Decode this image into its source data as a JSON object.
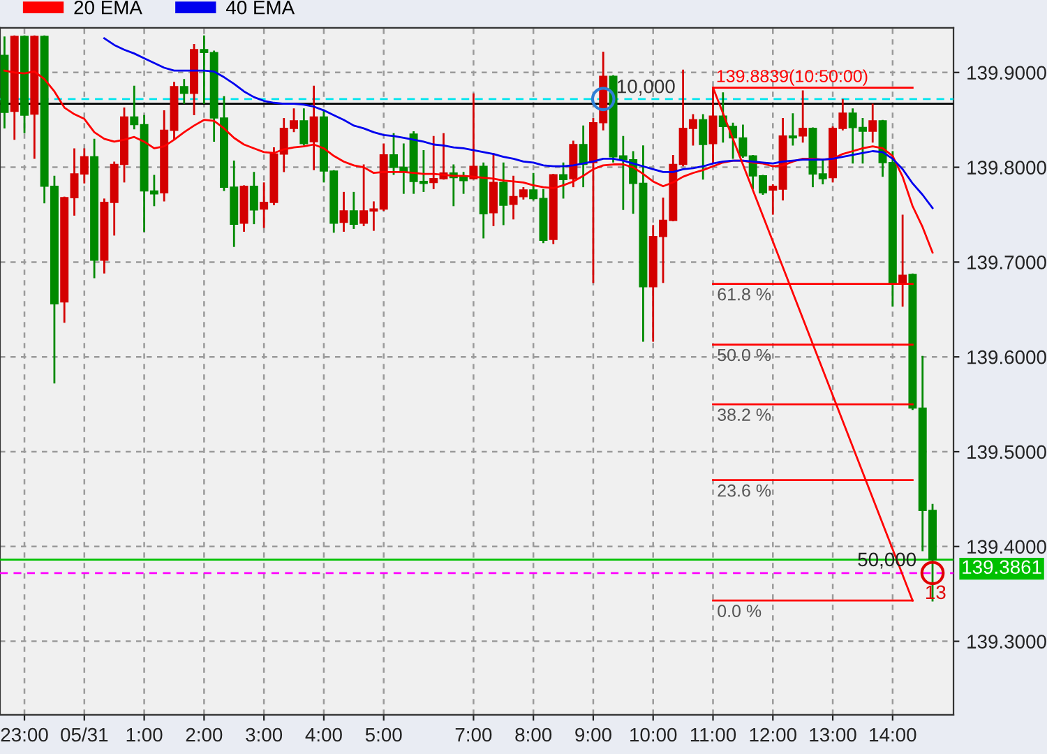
{
  "chart_data": {
    "type": "candlestick",
    "categories": [
      null,
      null,
      "23:00",
      null,
      null,
      null,
      null,
      null,
      "05/31",
      null,
      null,
      null,
      null,
      null,
      "1:00",
      null,
      null,
      null,
      null,
      null,
      "2:00",
      null,
      null,
      null,
      null,
      null,
      "3:00",
      null,
      null,
      null,
      null,
      null,
      "4:00",
      null,
      null,
      null,
      null,
      null,
      "5:00",
      null,
      null,
      null,
      null,
      null,
      null,
      null,
      null,
      "7:00",
      null,
      null,
      null,
      null,
      null,
      "8:00",
      null,
      null,
      null,
      null,
      null,
      "9:00",
      null,
      null,
      null,
      null,
      null,
      "10:00",
      null,
      null,
      null,
      null,
      null,
      "11:00",
      null,
      null,
      null,
      null,
      null,
      "12:00",
      null,
      null,
      null,
      null,
      null,
      "13:00",
      null,
      null,
      null,
      null,
      null,
      "14:00",
      null,
      null,
      null,
      null
    ],
    "ohlc": [
      [
        139.918,
        139.937,
        139.842,
        139.858
      ],
      [
        139.859,
        139.938,
        139.83,
        139.938
      ],
      [
        139.938,
        139.938,
        139.837,
        139.855
      ],
      [
        139.856,
        139.938,
        139.81,
        139.938
      ],
      [
        139.938,
        139.938,
        139.763,
        139.78
      ],
      [
        139.78,
        139.79,
        139.573,
        139.656
      ],
      [
        139.658,
        139.768,
        139.637,
        139.768
      ],
      [
        139.768,
        139.819,
        139.75,
        139.793
      ],
      [
        139.793,
        139.819,
        139.784,
        139.811
      ],
      [
        139.811,
        139.829,
        139.684,
        139.702
      ],
      [
        139.702,
        139.766,
        139.689,
        139.763
      ],
      [
        139.763,
        139.805,
        139.729,
        139.803
      ],
      [
        139.803,
        139.862,
        139.785,
        139.853
      ],
      [
        139.853,
        139.885,
        139.841,
        139.845
      ],
      [
        139.845,
        139.854,
        139.733,
        139.775
      ],
      [
        139.775,
        139.791,
        139.76,
        139.772
      ],
      [
        139.773,
        139.859,
        139.765,
        139.839
      ],
      [
        139.839,
        139.889,
        139.83,
        139.885
      ],
      [
        139.885,
        139.892,
        139.868,
        139.878
      ],
      [
        139.878,
        139.929,
        139.856,
        139.924
      ],
      [
        139.924,
        139.938,
        139.868,
        139.921
      ],
      [
        139.921,
        139.922,
        139.828,
        139.852
      ],
      [
        139.852,
        139.874,
        139.776,
        139.779
      ],
      [
        139.779,
        139.806,
        139.717,
        139.74
      ],
      [
        139.741,
        139.78,
        139.733,
        139.78
      ],
      [
        139.78,
        139.794,
        139.741,
        139.755
      ],
      [
        139.756,
        139.783,
        139.737,
        139.763
      ],
      [
        139.763,
        139.82,
        139.761,
        139.814
      ],
      [
        139.814,
        139.851,
        139.796,
        139.841
      ],
      [
        139.841,
        139.861,
        139.838,
        139.849
      ],
      [
        139.849,
        139.861,
        139.824,
        139.825
      ],
      [
        139.827,
        139.885,
        139.798,
        139.853
      ],
      [
        139.853,
        139.86,
        139.785,
        139.796
      ],
      [
        139.796,
        139.796,
        139.732,
        139.741
      ],
      [
        139.742,
        139.773,
        139.733,
        139.754
      ],
      [
        139.754,
        139.773,
        139.736,
        139.74
      ],
      [
        139.741,
        139.802,
        139.739,
        139.754
      ],
      [
        139.754,
        139.763,
        139.734,
        139.756
      ],
      [
        139.756,
        139.824,
        139.755,
        139.813
      ],
      [
        139.813,
        139.835,
        139.793,
        139.8
      ],
      [
        139.8,
        139.824,
        139.773,
        139.795
      ],
      [
        139.835,
        139.837,
        139.773,
        139.785
      ],
      [
        139.785,
        139.817,
        139.775,
        139.783
      ],
      [
        139.784,
        139.832,
        139.778,
        139.788
      ],
      [
        139.788,
        139.835,
        139.788,
        139.794
      ],
      [
        139.794,
        139.802,
        139.76,
        139.789
      ],
      [
        139.79,
        139.794,
        139.773,
        139.786
      ],
      [
        139.788,
        139.877,
        139.788,
        139.801
      ],
      [
        139.801,
        139.804,
        139.726,
        139.751
      ],
      [
        139.752,
        139.814,
        139.739,
        139.784
      ],
      [
        139.784,
        139.804,
        139.74,
        139.76
      ],
      [
        139.761,
        139.79,
        139.746,
        139.769
      ],
      [
        139.769,
        139.778,
        139.767,
        139.776
      ],
      [
        139.776,
        139.793,
        139.766,
        139.767
      ],
      [
        139.767,
        139.776,
        139.721,
        139.723
      ],
      [
        139.724,
        139.792,
        139.72,
        139.792
      ],
      [
        139.792,
        139.804,
        139.768,
        139.787
      ],
      [
        139.788,
        139.827,
        139.78,
        139.824
      ],
      [
        139.824,
        139.843,
        139.78,
        139.803
      ],
      [
        139.805,
        139.851,
        139.679,
        139.847
      ],
      [
        139.847,
        139.921,
        139.84,
        139.896
      ],
      [
        139.896,
        139.896,
        139.806,
        139.811
      ],
      [
        139.812,
        139.832,
        139.756,
        139.808
      ],
      [
        139.808,
        139.816,
        139.752,
        139.783
      ],
      [
        139.783,
        139.822,
        139.617,
        139.674
      ],
      [
        139.674,
        139.738,
        139.617,
        139.727
      ],
      [
        139.727,
        139.767,
        139.679,
        139.744
      ],
      [
        139.744,
        139.812,
        139.744,
        139.803
      ],
      [
        139.803,
        139.902,
        139.802,
        139.841
      ],
      [
        139.841,
        139.855,
        139.824,
        139.85
      ],
      [
        139.85,
        139.855,
        139.788,
        139.824
      ],
      [
        139.825,
        139.884,
        139.805,
        139.854
      ],
      [
        139.854,
        139.878,
        139.827,
        139.843
      ],
      [
        139.843,
        139.846,
        139.81,
        139.831
      ],
      [
        139.831,
        139.844,
        139.811,
        139.812
      ],
      [
        139.812,
        139.812,
        139.778,
        139.791
      ],
      [
        139.791,
        139.791,
        139.772,
        139.773
      ],
      [
        139.776,
        139.781,
        139.751,
        139.78
      ],
      [
        139.777,
        139.851,
        139.766,
        139.833
      ],
      [
        139.833,
        139.856,
        139.824,
        139.831
      ],
      [
        139.833,
        139.88,
        139.827,
        139.841
      ],
      [
        139.841,
        139.841,
        139.78,
        139.793
      ],
      [
        139.793,
        139.807,
        139.783,
        139.788
      ],
      [
        139.789,
        139.842,
        139.785,
        139.841
      ],
      [
        139.841,
        139.871,
        139.84,
        139.857
      ],
      [
        139.857,
        139.861,
        139.805,
        139.842
      ],
      [
        139.842,
        139.851,
        139.805,
        139.838
      ],
      [
        139.838,
        139.866,
        139.827,
        139.849
      ],
      [
        139.849,
        139.849,
        139.791,
        139.805
      ],
      [
        139.805,
        139.816,
        139.654,
        139.678
      ],
      [
        139.678,
        139.749,
        139.654,
        139.686
      ],
      [
        139.687,
        139.687,
        139.545,
        139.546
      ],
      [
        139.546,
        139.6,
        139.396,
        139.438
      ],
      [
        139.438,
        139.444,
        139.343,
        139.3861
      ]
    ],
    "colors": [
      "#008a00",
      "#d40000",
      "#008a00",
      "#d40000",
      "#008a00",
      "#008a00",
      "#d40000",
      "#d40000",
      "#d40000",
      "#008a00",
      "#d40000",
      "#d40000",
      "#d40000",
      "#008a00",
      "#008a00",
      "#008a00",
      "#d40000",
      "#d40000",
      "#008a00",
      "#d40000",
      "#008a00",
      "#008a00",
      "#008a00",
      "#008a00",
      "#d40000",
      "#008a00",
      "#d40000",
      "#d40000",
      "#d40000",
      "#d40000",
      "#008a00",
      "#d40000",
      "#008a00",
      "#008a00",
      "#d40000",
      "#008a00",
      "#d40000",
      "#d40000",
      "#d40000",
      "#008a00",
      "#008a00",
      "#008a00",
      "#008a00",
      "#d40000",
      "#d40000",
      "#008a00",
      "#008a00",
      "#d40000",
      "#008a00",
      "#d40000",
      "#008a00",
      "#d40000",
      "#d40000",
      "#008a00",
      "#008a00",
      "#d40000",
      "#008a00",
      "#d40000",
      "#008a00",
      "#d40000",
      "#d40000",
      "#008a00",
      "#008a00",
      "#008a00",
      "#008a00",
      "#d40000",
      "#d40000",
      "#d40000",
      "#d40000",
      "#d40000",
      "#008a00",
      "#d40000",
      "#008a00",
      "#008a00",
      "#008a00",
      "#008a00",
      "#008a00",
      "#d40000",
      "#d40000",
      "#008a00",
      "#d40000",
      "#008a00",
      "#008a00",
      "#d40000",
      "#d40000",
      "#008a00",
      "#008a00",
      "#d40000",
      "#008a00",
      "#008a00",
      "#d40000",
      "#008a00",
      "#008a00",
      "#008a00"
    ],
    "series": [
      {
        "name": "20 EMA",
        "type": "line",
        "color": "#ff0000",
        "values": [
          139.902,
          139.9,
          139.899,
          139.901,
          139.893,
          139.88,
          139.863,
          139.856,
          139.851,
          139.837,
          139.83,
          139.827,
          139.829,
          139.832,
          139.827,
          139.82,
          139.822,
          139.829,
          139.837,
          139.844,
          139.85,
          139.849,
          139.841,
          139.831,
          139.824,
          139.82,
          139.816,
          139.815,
          139.819,
          139.821,
          139.822,
          139.824,
          139.82,
          139.812,
          139.806,
          139.802,
          139.8,
          139.794,
          139.795,
          139.795,
          139.795,
          139.794,
          139.793,
          139.793,
          139.792,
          139.791,
          139.791,
          139.79,
          139.789,
          139.788,
          139.786,
          139.785,
          139.784,
          139.781,
          139.779,
          139.778,
          139.781,
          139.785,
          139.791,
          139.798,
          139.802,
          139.803,
          139.803,
          139.8,
          139.793,
          139.785,
          139.78,
          139.784,
          139.79,
          139.794,
          139.797,
          139.801,
          139.805,
          139.807,
          139.807,
          139.805,
          139.804,
          139.801,
          139.802,
          139.806,
          139.809,
          139.809,
          139.808,
          139.809,
          139.814,
          139.817,
          139.82,
          139.822,
          139.82,
          139.812,
          139.79,
          139.759,
          139.737,
          139.71
        ]
      },
      {
        "name": "40 EMA",
        "type": "line",
        "color": "#0000ee",
        "values": [
          null,
          null,
          null,
          null,
          null,
          null,
          null,
          null,
          null,
          null,
          139.936,
          139.929,
          139.924,
          139.92,
          139.915,
          139.91,
          139.905,
          139.902,
          139.902,
          139.902,
          139.902,
          139.901,
          139.895,
          139.888,
          139.88,
          139.874,
          139.87,
          139.868,
          139.867,
          139.867,
          139.866,
          139.864,
          139.86,
          139.855,
          139.85,
          139.844,
          139.841,
          139.837,
          139.834,
          139.833,
          139.831,
          139.829,
          139.827,
          139.824,
          139.823,
          139.821,
          139.82,
          139.818,
          139.816,
          139.814,
          139.811,
          139.809,
          139.806,
          139.805,
          139.802,
          139.801,
          139.801,
          139.802,
          139.804,
          139.806,
          139.809,
          139.809,
          139.807,
          139.804,
          139.801,
          139.798,
          139.795,
          139.795,
          139.798,
          139.799,
          139.801,
          139.804,
          139.806,
          139.807,
          139.807,
          139.806,
          139.805,
          139.804,
          139.806,
          139.807,
          139.808,
          139.808,
          139.808,
          139.809,
          139.811,
          139.813,
          139.815,
          139.817,
          139.816,
          139.809,
          139.798,
          139.783,
          139.771,
          139.757
        ]
      },
      {
        "name": "139.8839(10:50:00)",
        "type": "line",
        "color": "#ff0000",
        "values": [
          null,
          null,
          null,
          null,
          null,
          null,
          null,
          null,
          null,
          null,
          null,
          null,
          null,
          null,
          null,
          null,
          null,
          null,
          null,
          null,
          null,
          null,
          null,
          null,
          null,
          null,
          null,
          null,
          null,
          null,
          null,
          null,
          null,
          null,
          null,
          null,
          null,
          null,
          null,
          null,
          null,
          null,
          null,
          null,
          null,
          null,
          null,
          null,
          null,
          null,
          null,
          null,
          null,
          null,
          null,
          null,
          null,
          null,
          null,
          null,
          null,
          null,
          null,
          null,
          null,
          null,
          null,
          null,
          null,
          null,
          null,
          139.884,
          null,
          null,
          null,
          null,
          null,
          null,
          null,
          null,
          null,
          null,
          null,
          null,
          null,
          null,
          null,
          null,
          null,
          null,
          null,
          139.884,
          null,
          null
        ]
      },
      {
        "name": "61.8 %",
        "type": "line",
        "color": "#ff0000",
        "values": [
          null,
          null,
          null,
          null,
          null,
          null,
          null,
          null,
          null,
          null,
          null,
          null,
          null,
          null,
          null,
          null,
          null,
          null,
          null,
          null,
          null,
          null,
          null,
          null,
          null,
          null,
          null,
          null,
          null,
          null,
          null,
          null,
          null,
          null,
          null,
          null,
          null,
          null,
          null,
          null,
          null,
          null,
          null,
          null,
          null,
          null,
          null,
          null,
          null,
          null,
          null,
          null,
          null,
          null,
          null,
          null,
          null,
          null,
          null,
          null,
          null,
          null,
          null,
          null,
          null,
          null,
          null,
          null,
          null,
          null,
          null,
          139.677,
          null,
          null,
          null,
          null,
          null,
          null,
          null,
          null,
          null,
          null,
          null,
          null,
          null,
          null,
          null,
          null,
          null,
          null,
          null,
          139.677,
          null,
          null
        ]
      },
      {
        "name": "50.0 %",
        "type": "line",
        "color": "#ff0000",
        "values": [
          null,
          null,
          null,
          null,
          null,
          null,
          null,
          null,
          null,
          null,
          null,
          null,
          null,
          null,
          null,
          null,
          null,
          null,
          null,
          null,
          null,
          null,
          null,
          null,
          null,
          null,
          null,
          null,
          null,
          null,
          null,
          null,
          null,
          null,
          null,
          null,
          null,
          null,
          null,
          null,
          null,
          null,
          null,
          null,
          null,
          null,
          null,
          null,
          null,
          null,
          null,
          null,
          null,
          null,
          null,
          null,
          null,
          null,
          null,
          null,
          null,
          null,
          null,
          null,
          null,
          null,
          null,
          null,
          null,
          null,
          null,
          139.613,
          null,
          null,
          null,
          null,
          null,
          null,
          null,
          null,
          null,
          null,
          null,
          null,
          null,
          null,
          null,
          null,
          null,
          null,
          null,
          139.613,
          null,
          null
        ]
      },
      {
        "name": "38.2 %",
        "type": "line",
        "color": "#ff0000",
        "values": [
          null,
          null,
          null,
          null,
          null,
          null,
          null,
          null,
          null,
          null,
          null,
          null,
          null,
          null,
          null,
          null,
          null,
          null,
          null,
          null,
          null,
          null,
          null,
          null,
          null,
          null,
          null,
          null,
          null,
          null,
          null,
          null,
          null,
          null,
          null,
          null,
          null,
          null,
          null,
          null,
          null,
          null,
          null,
          null,
          null,
          null,
          null,
          null,
          null,
          null,
          null,
          null,
          null,
          null,
          null,
          null,
          null,
          null,
          null,
          null,
          null,
          null,
          null,
          null,
          null,
          null,
          null,
          null,
          null,
          null,
          null,
          139.55,
          null,
          null,
          null,
          null,
          null,
          null,
          null,
          null,
          null,
          null,
          null,
          null,
          null,
          null,
          null,
          null,
          null,
          null,
          null,
          139.55,
          null,
          null
        ]
      },
      {
        "name": "23.6 %",
        "type": "line",
        "color": "#ff0000",
        "values": [
          null,
          null,
          null,
          null,
          null,
          null,
          null,
          null,
          null,
          null,
          null,
          null,
          null,
          null,
          null,
          null,
          null,
          null,
          null,
          null,
          null,
          null,
          null,
          null,
          null,
          null,
          null,
          null,
          null,
          null,
          null,
          null,
          null,
          null,
          null,
          null,
          null,
          null,
          null,
          null,
          null,
          null,
          null,
          null,
          null,
          null,
          null,
          null,
          null,
          null,
          null,
          null,
          null,
          null,
          null,
          null,
          null,
          null,
          null,
          null,
          null,
          null,
          null,
          null,
          null,
          null,
          null,
          null,
          null,
          null,
          null,
          139.47,
          null,
          null,
          null,
          null,
          null,
          null,
          null,
          null,
          null,
          null,
          null,
          null,
          null,
          null,
          null,
          null,
          null,
          null,
          null,
          139.47,
          null,
          null
        ]
      },
      {
        "name": "0.0 %",
        "type": "line",
        "color": "#ff0000",
        "values": [
          null,
          null,
          null,
          null,
          null,
          null,
          null,
          null,
          null,
          null,
          null,
          null,
          null,
          null,
          null,
          null,
          null,
          null,
          null,
          null,
          null,
          null,
          null,
          null,
          null,
          null,
          null,
          null,
          null,
          null,
          null,
          null,
          null,
          null,
          null,
          null,
          null,
          null,
          null,
          null,
          null,
          null,
          null,
          null,
          null,
          null,
          null,
          null,
          null,
          null,
          null,
          null,
          null,
          null,
          null,
          null,
          null,
          null,
          null,
          null,
          null,
          null,
          null,
          null,
          null,
          null,
          null,
          null,
          null,
          null,
          null,
          139.343,
          null,
          null,
          null,
          null,
          null,
          null,
          null,
          null,
          null,
          null,
          null,
          null,
          null,
          null,
          null,
          null,
          null,
          null,
          null,
          139.343,
          null,
          null
        ]
      },
      {
        "type": "line",
        "color": "#ff0000",
        "values": [
          null,
          null,
          null,
          null,
          null,
          null,
          null,
          null,
          null,
          null,
          null,
          null,
          null,
          null,
          null,
          null,
          null,
          null,
          null,
          null,
          null,
          null,
          null,
          null,
          null,
          null,
          null,
          null,
          null,
          null,
          null,
          null,
          null,
          null,
          null,
          null,
          null,
          null,
          null,
          null,
          null,
          null,
          null,
          null,
          null,
          null,
          null,
          null,
          null,
          null,
          null,
          null,
          null,
          null,
          null,
          null,
          null,
          null,
          null,
          null,
          null,
          null,
          null,
          null,
          null,
          null,
          null,
          null,
          null,
          null,
          null,
          139.884,
          null,
          null,
          null,
          null,
          null,
          null,
          null,
          null,
          null,
          null,
          null,
          null,
          null,
          null,
          null,
          null,
          null,
          null,
          null,
          139.343,
          null,
          null
        ]
      }
    ],
    "ylim": [
      139.2225,
      139.947
    ],
    "yticks": [
      {
        "value": 139.3,
        "label": "139.3000"
      },
      {
        "value": 139.4,
        "label": "139.4000"
      },
      {
        "value": 139.5,
        "label": "139.5000"
      },
      {
        "value": 139.6,
        "label": "139.6000"
      },
      {
        "value": 139.7,
        "label": "139.7000"
      },
      {
        "value": 139.8,
        "label": "139.8000"
      },
      {
        "value": 139.9,
        "label": "139.9000"
      }
    ],
    "ref_lines": [
      {
        "axis": "y",
        "value": 139.867,
        "color": "#000000",
        "line_style": "solid"
      },
      {
        "axis": "y",
        "value": 139.872,
        "color": "#00e5ee",
        "line_style": "dashed"
      },
      {
        "axis": "y",
        "value": 139.3861,
        "color": "#00c000",
        "line_style": "solid",
        "label": "139.3861"
      },
      {
        "axis": "y",
        "value": 139.372,
        "color": "#ff00ff",
        "line_style": "dashed"
      }
    ],
    "annotations": [
      "10,000",
      "50,000",
      "13"
    ],
    "grid": true,
    "legend": "top left"
  }
}
